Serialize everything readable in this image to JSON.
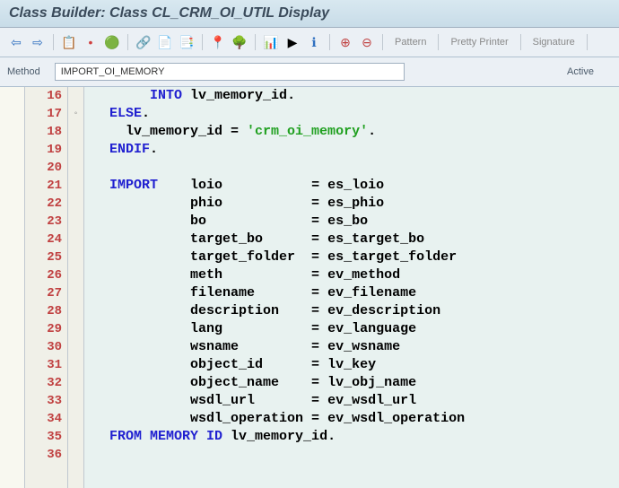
{
  "title": "Class Builder: Class CL_CRM_OI_UTIL Display",
  "toolbar": {
    "pattern": "Pattern",
    "pretty_printer": "Pretty Printer",
    "signature": "Signature"
  },
  "method_label": "Method",
  "method_value": "IMPORT_OI_MEMORY",
  "status": "Active",
  "line_numbers": [
    "16",
    "17",
    "18",
    "19",
    "20",
    "21",
    "22",
    "23",
    "24",
    "25",
    "26",
    "27",
    "28",
    "29",
    "30",
    "31",
    "32",
    "33",
    "34",
    "35",
    "36"
  ],
  "code_lines": [
    {
      "segments": [
        {
          "t": "       ",
          "c": "txt"
        },
        {
          "t": "INTO ",
          "c": "kw"
        },
        {
          "t": "lv_memory_id",
          "c": "txt"
        },
        {
          "t": ".",
          "c": "op"
        }
      ]
    },
    {
      "segments": [
        {
          "t": "  ",
          "c": "txt"
        },
        {
          "t": "ELSE",
          "c": "kw"
        },
        {
          "t": ".",
          "c": "op"
        }
      ]
    },
    {
      "segments": [
        {
          "t": "    lv_memory_id ",
          "c": "txt"
        },
        {
          "t": "= ",
          "c": "op"
        },
        {
          "t": "'crm_oi_memory'",
          "c": "str"
        },
        {
          "t": ".",
          "c": "op"
        }
      ]
    },
    {
      "segments": [
        {
          "t": "  ",
          "c": "txt"
        },
        {
          "t": "ENDIF",
          "c": "kw"
        },
        {
          "t": ".",
          "c": "op"
        }
      ]
    },
    {
      "segments": [
        {
          "t": "",
          "c": "txt"
        }
      ]
    },
    {
      "segments": [
        {
          "t": "  ",
          "c": "txt"
        },
        {
          "t": "IMPORT",
          "c": "kw"
        },
        {
          "t": "    loio           ",
          "c": "txt"
        },
        {
          "t": "= ",
          "c": "op"
        },
        {
          "t": "es_loio",
          "c": "txt"
        }
      ]
    },
    {
      "segments": [
        {
          "t": "            phio           ",
          "c": "txt"
        },
        {
          "t": "= ",
          "c": "op"
        },
        {
          "t": "es_phio",
          "c": "txt"
        }
      ]
    },
    {
      "segments": [
        {
          "t": "            bo             ",
          "c": "txt"
        },
        {
          "t": "= ",
          "c": "op"
        },
        {
          "t": "es_bo",
          "c": "txt"
        }
      ]
    },
    {
      "segments": [
        {
          "t": "            target_bo      ",
          "c": "txt"
        },
        {
          "t": "= ",
          "c": "op"
        },
        {
          "t": "es_target_bo",
          "c": "txt"
        }
      ]
    },
    {
      "segments": [
        {
          "t": "            target_folder  ",
          "c": "txt"
        },
        {
          "t": "= ",
          "c": "op"
        },
        {
          "t": "es_target_folder",
          "c": "txt"
        }
      ]
    },
    {
      "segments": [
        {
          "t": "            meth           ",
          "c": "txt"
        },
        {
          "t": "= ",
          "c": "op"
        },
        {
          "t": "ev_method",
          "c": "txt"
        }
      ]
    },
    {
      "segments": [
        {
          "t": "            filename       ",
          "c": "txt"
        },
        {
          "t": "= ",
          "c": "op"
        },
        {
          "t": "ev_filename",
          "c": "txt"
        }
      ]
    },
    {
      "segments": [
        {
          "t": "            description    ",
          "c": "txt"
        },
        {
          "t": "= ",
          "c": "op"
        },
        {
          "t": "ev_description",
          "c": "txt"
        }
      ]
    },
    {
      "segments": [
        {
          "t": "            lang           ",
          "c": "txt"
        },
        {
          "t": "= ",
          "c": "op"
        },
        {
          "t": "ev_language",
          "c": "txt"
        }
      ]
    },
    {
      "segments": [
        {
          "t": "            wsname         ",
          "c": "txt"
        },
        {
          "t": "= ",
          "c": "op"
        },
        {
          "t": "ev_wsname",
          "c": "txt"
        }
      ]
    },
    {
      "segments": [
        {
          "t": "            object_id      ",
          "c": "txt"
        },
        {
          "t": "= ",
          "c": "op"
        },
        {
          "t": "lv_key",
          "c": "txt"
        }
      ]
    },
    {
      "segments": [
        {
          "t": "            object_name    ",
          "c": "txt"
        },
        {
          "t": "= ",
          "c": "op"
        },
        {
          "t": "lv_obj_name",
          "c": "txt"
        }
      ]
    },
    {
      "segments": [
        {
          "t": "            wsdl_url       ",
          "c": "txt"
        },
        {
          "t": "= ",
          "c": "op"
        },
        {
          "t": "ev_wsdl_url",
          "c": "txt"
        }
      ]
    },
    {
      "segments": [
        {
          "t": "            wsdl_operation ",
          "c": "txt"
        },
        {
          "t": "= ",
          "c": "op"
        },
        {
          "t": "ev_wsdl_operation",
          "c": "txt"
        }
      ]
    },
    {
      "segments": [
        {
          "t": "  ",
          "c": "txt"
        },
        {
          "t": "FROM MEMORY ID ",
          "c": "kw"
        },
        {
          "t": "lv_memory_id",
          "c": "txt"
        },
        {
          "t": ".",
          "c": "op"
        }
      ]
    },
    {
      "segments": [
        {
          "t": "",
          "c": "txt"
        }
      ]
    }
  ],
  "fold_markers": {
    "1": "◦"
  },
  "colors": {
    "keyword": "#2020d0",
    "string": "#20a020",
    "text": "#000000",
    "line_number": "#c04040",
    "editor_bg": "#e8f2f0",
    "gutter_bg": "#f0f0e8"
  }
}
